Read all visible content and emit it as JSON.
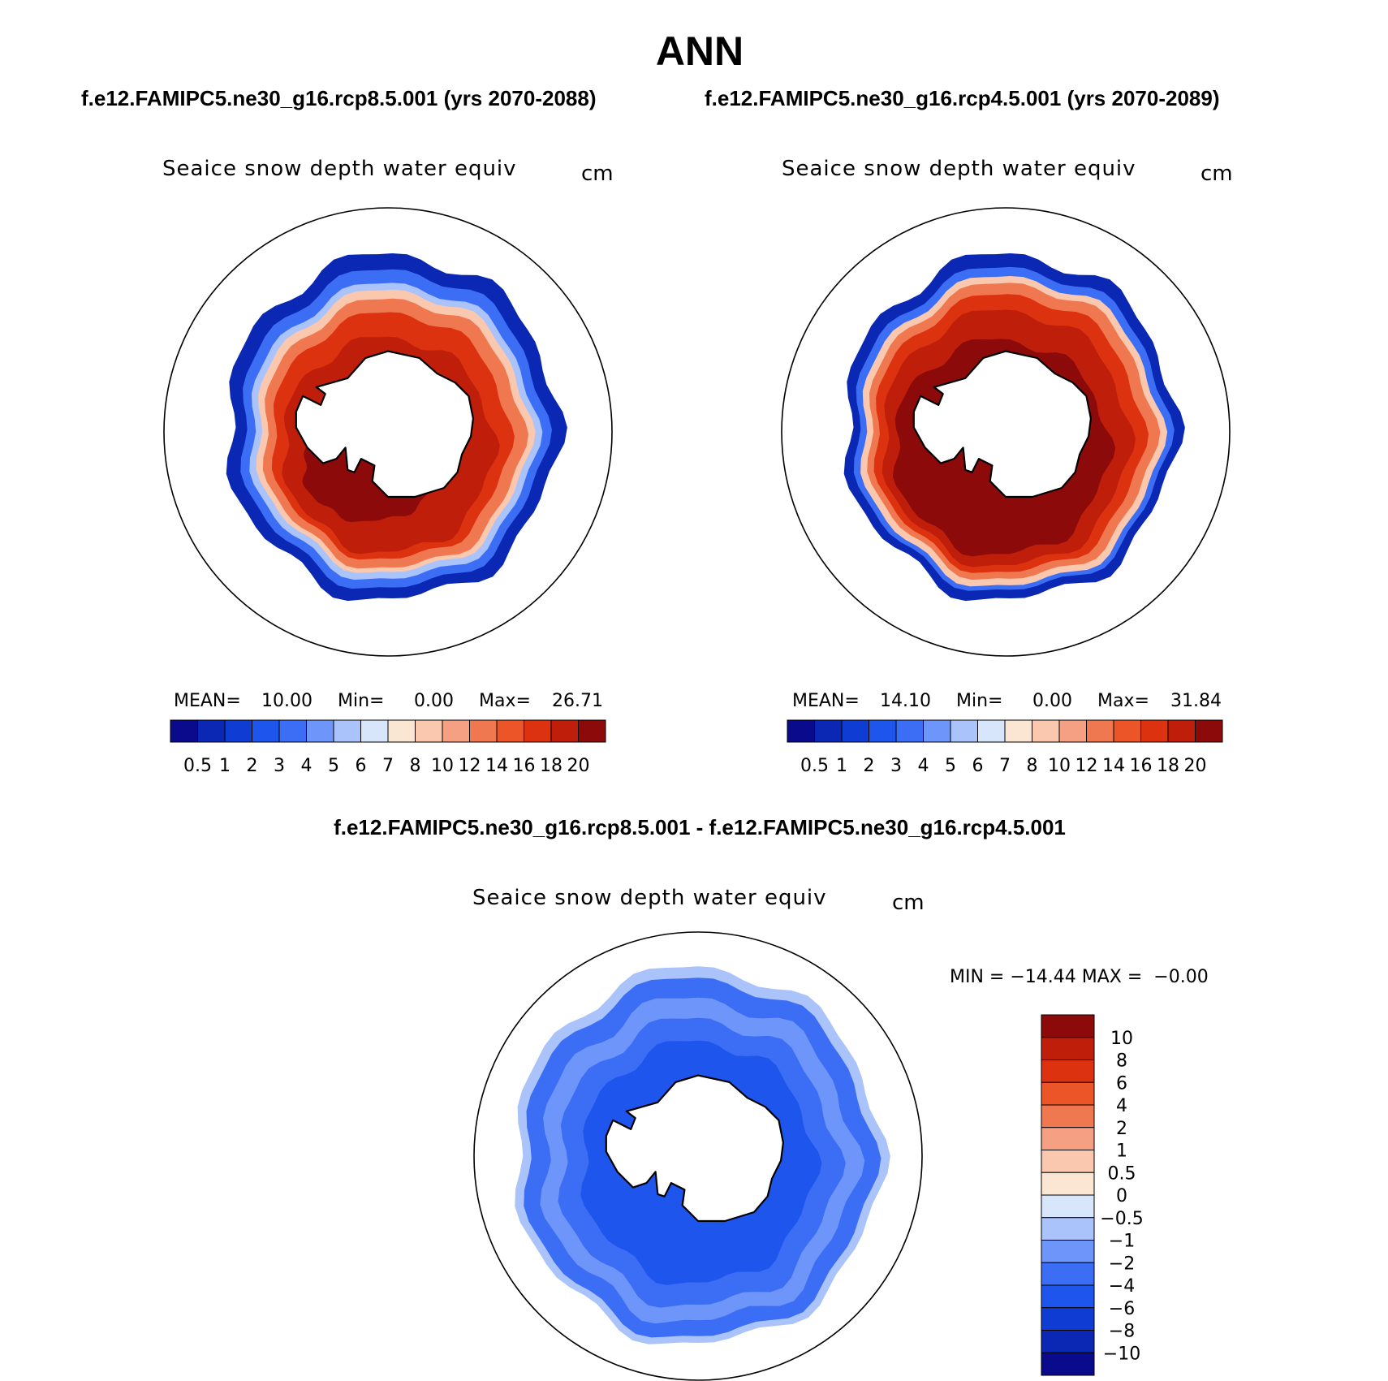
{
  "title": "ANN",
  "panel_left": {
    "case_label": "f.e12.FAMIPC5.ne30_g16.rcp8.5.001 (yrs 2070-2088)",
    "variable": "Seaice snow depth water equiv",
    "units": "cm",
    "stats": {
      "mean_label": "MEAN=",
      "mean": "10.00",
      "min_label": "Min=",
      "min": "0.00",
      "max_label": "Max=",
      "max": "26.71"
    },
    "map_intensity": 0.82
  },
  "panel_right": {
    "case_label": "f.e12.FAMIPC5.ne30_g16.rcp4.5.001 (yrs 2070-2089)",
    "variable": "Seaice snow depth water equiv",
    "units": "cm",
    "stats": {
      "mean_label": "MEAN=",
      "mean": "14.10",
      "min_label": "Min=",
      "min": "0.00",
      "max_label": "Max=",
      "max": "31.84"
    },
    "map_intensity": 1.0
  },
  "panel_diff": {
    "case_label": "f.e12.FAMIPC5.ne30_g16.rcp8.5.001 - f.e12.FAMIPC5.ne30_g16.rcp4.5.001",
    "variable": "Seaice snow depth water equiv",
    "units": "cm",
    "stats_text": "MIN = −14.44 MAX =  −0.00"
  },
  "colorbar_main": {
    "colors": [
      "#0a0a8c",
      "#0a28b4",
      "#0f3cd2",
      "#1e55ec",
      "#3c6ef5",
      "#6e96fa",
      "#aac3fa",
      "#d7e6fa",
      "#fae6d2",
      "#fac8af",
      "#f5a082",
      "#f07850",
      "#eb5528",
      "#dc3210",
      "#be1e0a",
      "#8c0a0a"
    ],
    "labels": [
      "0.5",
      "1",
      "2",
      "3",
      "4",
      "5",
      "6",
      "7",
      "8",
      "10",
      "12",
      "14",
      "16",
      "18",
      "20"
    ]
  },
  "colorbar_diff": {
    "colors_top_to_bottom": [
      "#8c0a0a",
      "#be1e0a",
      "#dc3210",
      "#eb5528",
      "#f07850",
      "#f5a082",
      "#fac8af",
      "#fae6d2",
      "#d7e6fa",
      "#aac3fa",
      "#6e96fa",
      "#3c6ef5",
      "#1e55ec",
      "#0f3cd2",
      "#0a28b4",
      "#0a0a8c"
    ],
    "labels": [
      "10",
      "8",
      "6",
      "4",
      "2",
      "1",
      "0.5",
      "0",
      "−0.5",
      "−1",
      "−2",
      "−4",
      "−6",
      "−8",
      "−10"
    ]
  },
  "colors": {
    "land": "#ffffff",
    "coast": "#000000",
    "outline": "#000000"
  }
}
